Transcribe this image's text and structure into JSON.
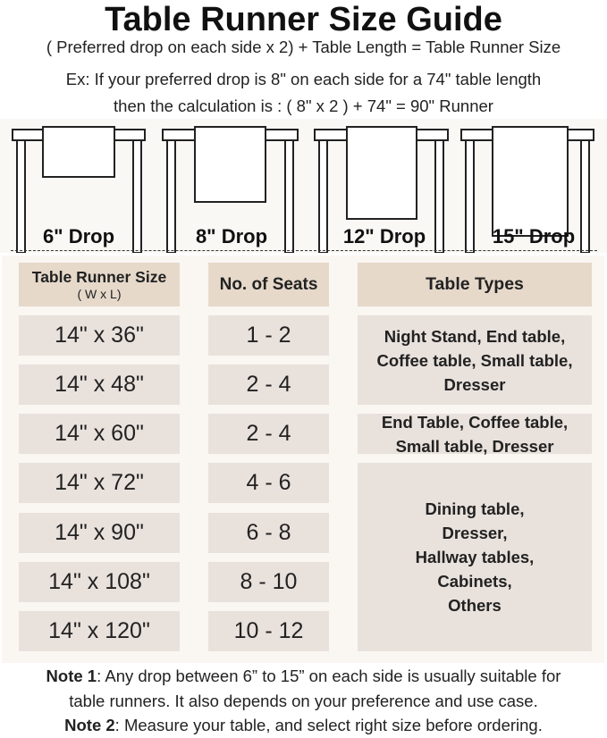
{
  "title": "Table Runner Size Guide",
  "formula": "( Preferred drop on each side x 2) + Table Length = Table Runner Size",
  "example_line1": "Ex: If your preferred drop is 8\" on each side for a 74\" table length",
  "example_line2": "then the calculation is : ( 8\" x 2 ) + 74\" = 90\" Runner",
  "drops": [
    "6\" Drop",
    "8\" Drop",
    "12\" Drop",
    "15\" Drop"
  ],
  "table": {
    "headers": {
      "size": "Table Runner Size",
      "size_sub": "( W x L)",
      "seats": "No. of Seats",
      "types": "Table Types"
    },
    "rows": [
      {
        "size": "14\" x 36\"",
        "seats": "1 - 2"
      },
      {
        "size": "14\" x 48\"",
        "seats": "2 - 4"
      },
      {
        "size": "14\" x 60\"",
        "seats": "2 - 4"
      },
      {
        "size": "14\" x 72\"",
        "seats": "4 - 6"
      },
      {
        "size": "14\" x 90\"",
        "seats": "6 - 8"
      },
      {
        "size": "14\" x 108\"",
        "seats": "8 - 10"
      },
      {
        "size": "14\" x 120\"",
        "seats": "10 - 12"
      }
    ],
    "types": [
      "Night Stand, End table, Coffee table, Small table, Dresser",
      "End Table, Coffee table, Small table, Dresser",
      "Dining table, Dresser, Hallway tables, Cabinets, Others"
    ]
  },
  "notes": {
    "note1_label": "Note 1",
    "note1_line1": ": Any drop between 6” to 15” on each side is usually suitable for",
    "note1_line2": "table runners. It also depends on your preference and use case.",
    "note2_label": "Note 2",
    "note2_text": ": Measure your table, and select right size before ordering."
  },
  "colors": {
    "header_bg": "#e6d9ca",
    "cell_bg": "#e9e1dc",
    "panel_bg": "#faf6f2"
  }
}
